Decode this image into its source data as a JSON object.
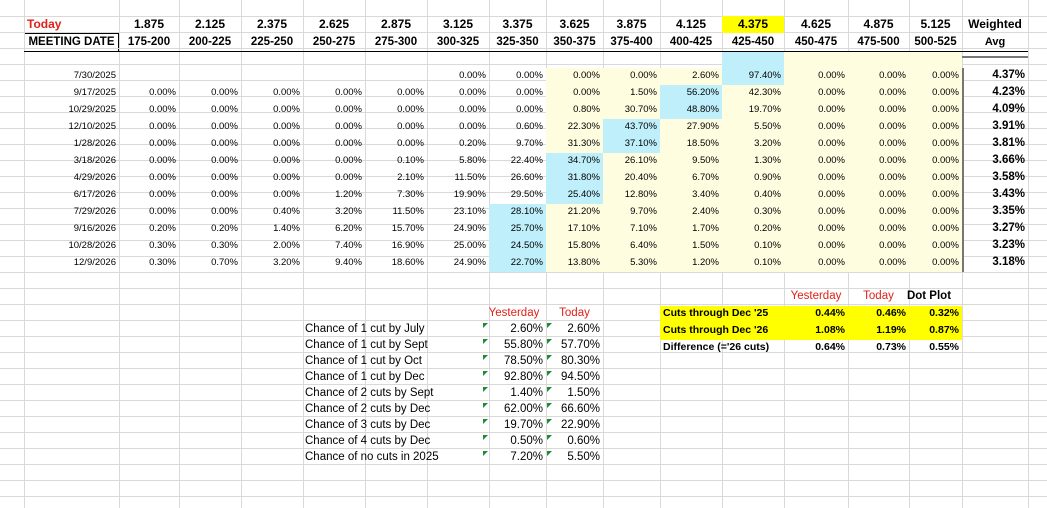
{
  "header": {
    "corner_top": "Today",
    "corner_bottom": "MEETING DATE",
    "midpoints": [
      "1.875",
      "2.125",
      "2.375",
      "2.625",
      "2.875",
      "3.125",
      "3.375",
      "3.625",
      "3.875",
      "4.125",
      "4.375",
      "4.625",
      "4.875",
      "5.125"
    ],
    "ranges": [
      "175-200",
      "200-225",
      "225-250",
      "250-275",
      "275-300",
      "300-325",
      "325-350",
      "350-375",
      "375-400",
      "400-425",
      "425-450",
      "450-475",
      "475-500",
      "500-525"
    ],
    "weighted_top": "Weighted",
    "weighted_bottom": "Avg",
    "current_rate": "4.375"
  },
  "table": {
    "rows": [
      {
        "date": "7/30/2025",
        "values": [
          "",
          "",
          "",
          "",
          "",
          "0.00%",
          "0.00%",
          "0.00%",
          "0.00%",
          "2.60%",
          "97.40%",
          "0.00%",
          "0.00%",
          "0.00%"
        ],
        "avg": "4.37%"
      },
      {
        "date": "9/17/2025",
        "values": [
          "0.00%",
          "0.00%",
          "0.00%",
          "0.00%",
          "0.00%",
          "0.00%",
          "0.00%",
          "0.00%",
          "1.50%",
          "56.20%",
          "42.30%",
          "0.00%",
          "0.00%",
          "0.00%"
        ],
        "avg": "4.23%"
      },
      {
        "date": "10/29/2025",
        "values": [
          "0.00%",
          "0.00%",
          "0.00%",
          "0.00%",
          "0.00%",
          "0.00%",
          "0.00%",
          "0.80%",
          "30.70%",
          "48.80%",
          "19.70%",
          "0.00%",
          "0.00%",
          "0.00%"
        ],
        "avg": "4.09%"
      },
      {
        "date": "12/10/2025",
        "values": [
          "0.00%",
          "0.00%",
          "0.00%",
          "0.00%",
          "0.00%",
          "0.00%",
          "0.60%",
          "22.30%",
          "43.70%",
          "27.90%",
          "5.50%",
          "0.00%",
          "0.00%",
          "0.00%"
        ],
        "avg": "3.91%"
      },
      {
        "date": "1/28/2026",
        "values": [
          "0.00%",
          "0.00%",
          "0.00%",
          "0.00%",
          "0.00%",
          "0.20%",
          "9.70%",
          "31.30%",
          "37.10%",
          "18.50%",
          "3.20%",
          "0.00%",
          "0.00%",
          "0.00%"
        ],
        "avg": "3.81%"
      },
      {
        "date": "3/18/2026",
        "values": [
          "0.00%",
          "0.00%",
          "0.00%",
          "0.00%",
          "0.10%",
          "5.80%",
          "22.40%",
          "34.70%",
          "26.10%",
          "9.50%",
          "1.30%",
          "0.00%",
          "0.00%",
          "0.00%"
        ],
        "avg": "3.66%"
      },
      {
        "date": "4/29/2026",
        "values": [
          "0.00%",
          "0.00%",
          "0.00%",
          "0.00%",
          "2.10%",
          "11.50%",
          "26.60%",
          "31.80%",
          "20.40%",
          "6.70%",
          "0.90%",
          "0.00%",
          "0.00%",
          "0.00%"
        ],
        "avg": "3.58%"
      },
      {
        "date": "6/17/2026",
        "values": [
          "0.00%",
          "0.00%",
          "0.00%",
          "1.20%",
          "7.30%",
          "19.90%",
          "29.50%",
          "25.40%",
          "12.80%",
          "3.40%",
          "0.40%",
          "0.00%",
          "0.00%",
          "0.00%"
        ],
        "avg": "3.43%"
      },
      {
        "date": "7/29/2026",
        "values": [
          "0.00%",
          "0.00%",
          "0.40%",
          "3.20%",
          "11.50%",
          "23.10%",
          "28.10%",
          "21.20%",
          "9.70%",
          "2.40%",
          "0.30%",
          "0.00%",
          "0.00%",
          "0.00%"
        ],
        "avg": "3.35%"
      },
      {
        "date": "9/16/2026",
        "values": [
          "0.20%",
          "0.20%",
          "1.40%",
          "6.20%",
          "15.70%",
          "24.90%",
          "25.70%",
          "17.10%",
          "7.10%",
          "1.70%",
          "0.20%",
          "0.00%",
          "0.00%",
          "0.00%"
        ],
        "avg": "3.27%"
      },
      {
        "date": "10/28/2026",
        "values": [
          "0.30%",
          "0.30%",
          "2.00%",
          "7.40%",
          "16.90%",
          "25.00%",
          "24.50%",
          "15.80%",
          "6.40%",
          "1.50%",
          "0.10%",
          "0.00%",
          "0.00%",
          "0.00%"
        ],
        "avg": "3.23%"
      },
      {
        "date": "12/9/2026",
        "values": [
          "0.30%",
          "0.70%",
          "3.20%",
          "9.40%",
          "18.60%",
          "24.90%",
          "22.70%",
          "13.80%",
          "5.30%",
          "1.20%",
          "0.10%",
          "0.00%",
          "0.00%",
          "0.00%"
        ],
        "avg": "3.18%"
      }
    ],
    "highlight_cells": [
      [
        0,
        10
      ],
      [
        1,
        9
      ],
      [
        2,
        9
      ],
      [
        3,
        8
      ],
      [
        4,
        8
      ],
      [
        5,
        7
      ],
      [
        6,
        7
      ],
      [
        7,
        7
      ],
      [
        8,
        6
      ],
      [
        9,
        6
      ],
      [
        10,
        6
      ],
      [
        11,
        6
      ]
    ]
  },
  "chances": {
    "yesterday_label": "Yesterday",
    "today_label": "Today",
    "items": [
      {
        "label": "Chance of 1 cut by July",
        "yesterday": "2.60%",
        "today": "2.60%"
      },
      {
        "label": "Chance of 1 cut by Sept",
        "yesterday": "55.80%",
        "today": "57.70%"
      },
      {
        "label": "Chance of 1 cut by Oct",
        "yesterday": "78.50%",
        "today": "80.30%"
      },
      {
        "label": "Chance of 1 cut by Dec",
        "yesterday": "92.80%",
        "today": "94.50%"
      },
      {
        "label": "Chance of 2 cuts by Sept",
        "yesterday": "1.40%",
        "today": "1.50%"
      },
      {
        "label": "Chance of 2 cuts by Dec",
        "yesterday": "62.00%",
        "today": "66.60%"
      },
      {
        "label": "Chance of 3 cuts by Dec",
        "yesterday": "19.70%",
        "today": "22.90%"
      },
      {
        "label": "Chance of 4 cuts by Dec",
        "yesterday": "0.50%",
        "today": "0.60%"
      },
      {
        "label": "Chance of no cuts in 2025",
        "yesterday": "7.20%",
        "today": "5.50%"
      }
    ]
  },
  "cuts": {
    "yesterday_label": "Yesterday",
    "today_label": "Today",
    "dotplot_label": "Dot Plot",
    "rows": [
      {
        "label": "Cuts through Dec '25",
        "yesterday": "0.44%",
        "today": "0.46%",
        "dotplot": "0.32%"
      },
      {
        "label": "Cuts through Dec '26",
        "yesterday": "1.08%",
        "today": "1.19%",
        "dotplot": "0.87%"
      },
      {
        "label": "Difference (='26 cuts)",
        "yesterday": "0.64%",
        "today": "0.73%",
        "dotplot": "0.55%"
      }
    ]
  },
  "colors": {
    "red": "#e0201a",
    "yellow": "#ffff00",
    "cyan_highlight": "#bfeffb",
    "cream": "#fffde0",
    "gridline": "#d9d9d9",
    "comment_marker": "#1e8c2e"
  }
}
